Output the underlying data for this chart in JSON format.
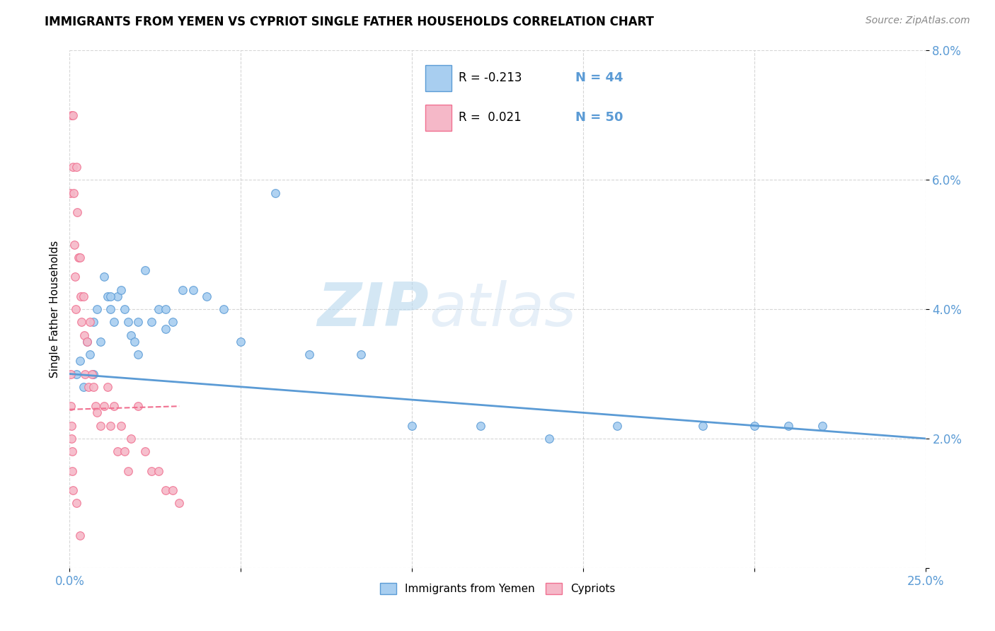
{
  "title": "IMMIGRANTS FROM YEMEN VS CYPRIOT SINGLE FATHER HOUSEHOLDS CORRELATION CHART",
  "source": "Source: ZipAtlas.com",
  "ylabel": "Single Father Households",
  "xlim": [
    0,
    0.25
  ],
  "ylim": [
    0,
    0.08
  ],
  "xticks": [
    0.0,
    0.05,
    0.1,
    0.15,
    0.2,
    0.25
  ],
  "yticks": [
    0.0,
    0.02,
    0.04,
    0.06,
    0.08
  ],
  "xticklabels": [
    "0.0%",
    "",
    "",
    "",
    "",
    "25.0%"
  ],
  "yticklabels": [
    "",
    "2.0%",
    "4.0%",
    "6.0%",
    "8.0%"
  ],
  "color_blue": "#A8CEF0",
  "color_pink": "#F5B8C8",
  "color_blue_line": "#5B9BD5",
  "color_pink_line": "#F07090",
  "color_tick": "#5B9BD5",
  "watermark_color": "#C8E0F4",
  "blue_scatter_x": [
    0.002,
    0.003,
    0.004,
    0.005,
    0.006,
    0.007,
    0.008,
    0.009,
    0.01,
    0.011,
    0.012,
    0.013,
    0.014,
    0.015,
    0.016,
    0.017,
    0.018,
    0.019,
    0.02,
    0.022,
    0.024,
    0.026,
    0.028,
    0.03,
    0.033,
    0.036,
    0.04,
    0.045,
    0.05,
    0.06,
    0.07,
    0.085,
    0.1,
    0.12,
    0.14,
    0.16,
    0.185,
    0.2,
    0.21,
    0.22,
    0.007,
    0.012,
    0.02,
    0.028
  ],
  "blue_scatter_y": [
    0.03,
    0.032,
    0.028,
    0.035,
    0.033,
    0.038,
    0.04,
    0.035,
    0.045,
    0.042,
    0.04,
    0.038,
    0.042,
    0.043,
    0.04,
    0.038,
    0.036,
    0.035,
    0.038,
    0.046,
    0.038,
    0.04,
    0.04,
    0.038,
    0.043,
    0.043,
    0.042,
    0.04,
    0.035,
    0.058,
    0.033,
    0.033,
    0.022,
    0.022,
    0.02,
    0.022,
    0.022,
    0.022,
    0.022,
    0.022,
    0.03,
    0.042,
    0.033,
    0.037
  ],
  "pink_scatter_x": [
    0.0002,
    0.0003,
    0.0004,
    0.0005,
    0.0006,
    0.0007,
    0.0008,
    0.0009,
    0.001,
    0.0012,
    0.0014,
    0.0016,
    0.0018,
    0.002,
    0.0022,
    0.0025,
    0.003,
    0.0032,
    0.0035,
    0.004,
    0.0042,
    0.0045,
    0.005,
    0.0055,
    0.006,
    0.0065,
    0.007,
    0.0075,
    0.008,
    0.009,
    0.01,
    0.011,
    0.012,
    0.013,
    0.014,
    0.015,
    0.016,
    0.017,
    0.018,
    0.02,
    0.022,
    0.024,
    0.026,
    0.028,
    0.03,
    0.032,
    0.0005,
    0.001,
    0.002,
    0.003
  ],
  "pink_scatter_y": [
    0.058,
    0.03,
    0.025,
    0.022,
    0.02,
    0.018,
    0.015,
    0.012,
    0.062,
    0.058,
    0.05,
    0.045,
    0.04,
    0.062,
    0.055,
    0.048,
    0.048,
    0.042,
    0.038,
    0.042,
    0.036,
    0.03,
    0.035,
    0.028,
    0.038,
    0.03,
    0.028,
    0.025,
    0.024,
    0.022,
    0.025,
    0.028,
    0.022,
    0.025,
    0.018,
    0.022,
    0.018,
    0.015,
    0.02,
    0.025,
    0.018,
    0.015,
    0.015,
    0.012,
    0.012,
    0.01,
    0.07,
    0.07,
    0.01,
    0.005
  ],
  "blue_trend_x": [
    0.0,
    0.25
  ],
  "blue_trend_y": [
    0.03,
    0.02
  ],
  "pink_trend_x": [
    0.0,
    0.032
  ],
  "pink_trend_y": [
    0.0245,
    0.025
  ],
  "legend_items": [
    {
      "label_r": "R = -0.213",
      "label_n": "N = 44",
      "color": "#A8CEF0",
      "edge": "#5B9BD5"
    },
    {
      "label_r": "R =  0.021",
      "label_n": "N = 50",
      "color": "#F5B8C8",
      "edge": "#F07090"
    }
  ],
  "bottom_legend": [
    {
      "label": "Immigrants from Yemen",
      "color": "#A8CEF0",
      "edge": "#5B9BD5"
    },
    {
      "label": "Cypriots",
      "color": "#F5B8C8",
      "edge": "#F07090"
    }
  ]
}
